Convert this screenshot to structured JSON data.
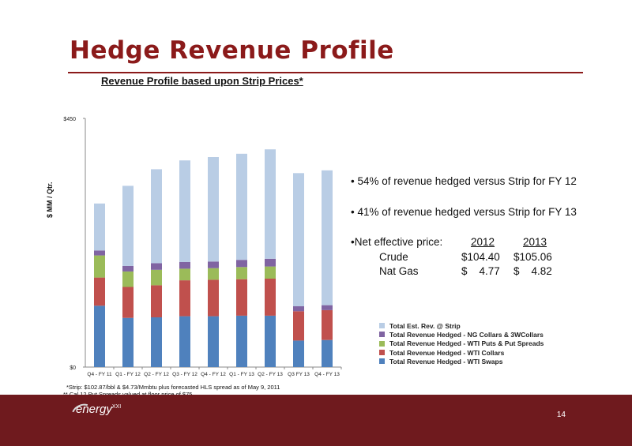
{
  "slide": {
    "title": "Hedge Revenue Profile",
    "subtitle": "Revenue Profile based upon Strip Prices*",
    "page_number": "14",
    "logo_text": "energy",
    "logo_suffix": "XXI"
  },
  "bullets": [
    "• 54% of revenue hedged versus Strip for FY 12",
    "• 41% of revenue hedged versus Strip for FY 13"
  ],
  "net_price": {
    "label": "•Net effective price:",
    "years": [
      "2012",
      "2013"
    ],
    "rows": [
      {
        "name": "Crude",
        "v2012": "$104.40",
        "v2013": "$105.06"
      },
      {
        "name": "Nat Gas",
        "v2012": "$    4.77",
        "v2013": "$    4.82"
      }
    ]
  },
  "footnotes": [
    "*Strip:  $102.87/bbl & $4.73/Mmbtu plus forecasted HLS spread as of May 9, 2011",
    "** Cal 12 Put Spreads valued at floor price of $75"
  ],
  "chart_data": {
    "type": "bar",
    "stacked": true,
    "ylabel": "$ MM / Qtr.",
    "ylim": [
      0,
      450
    ],
    "yticks": [
      "$0",
      "$450"
    ],
    "categories": [
      "Q4 - FY 11",
      "Q1 - FY 12",
      "Q2 - FY 12",
      "Q3 - FY 12",
      "Q4 - FY 12",
      "Q1 - FY 13",
      "Q2 - FY 13",
      "Q3 FY 13",
      "Q4 - FY 13"
    ],
    "series": [
      {
        "name": "Total Revenue Hedged - WTI Swaps",
        "color": "#4f81bd",
        "values": [
          111,
          89,
          90,
          92,
          92,
          93,
          93,
          48,
          49
        ]
      },
      {
        "name": "Total Revenue Hedged - WTI Collars",
        "color": "#c0504d",
        "values": [
          51,
          56,
          58,
          65,
          66,
          66,
          67,
          53,
          54
        ]
      },
      {
        "name": "Total Revenue Hedged - WTI Puts & Put Spreads",
        "color": "#9bbb59",
        "values": [
          40,
          28,
          28,
          21,
          21,
          22,
          22,
          0,
          0
        ]
      },
      {
        "name": "Total Revenue Hedged - NG Collars & 3WCollars",
        "color": "#8064a2",
        "values": [
          9,
          10,
          12,
          12,
          12,
          13,
          14,
          9,
          9
        ]
      },
      {
        "name": "Total Est. Rev. @ Strip",
        "color": "#b9cde5",
        "values": [
          85,
          145,
          170,
          184,
          189,
          192,
          198,
          241,
          244
        ]
      }
    ],
    "legend_position": "lower-right",
    "legend_order": [
      4,
      3,
      2,
      1,
      0
    ]
  }
}
